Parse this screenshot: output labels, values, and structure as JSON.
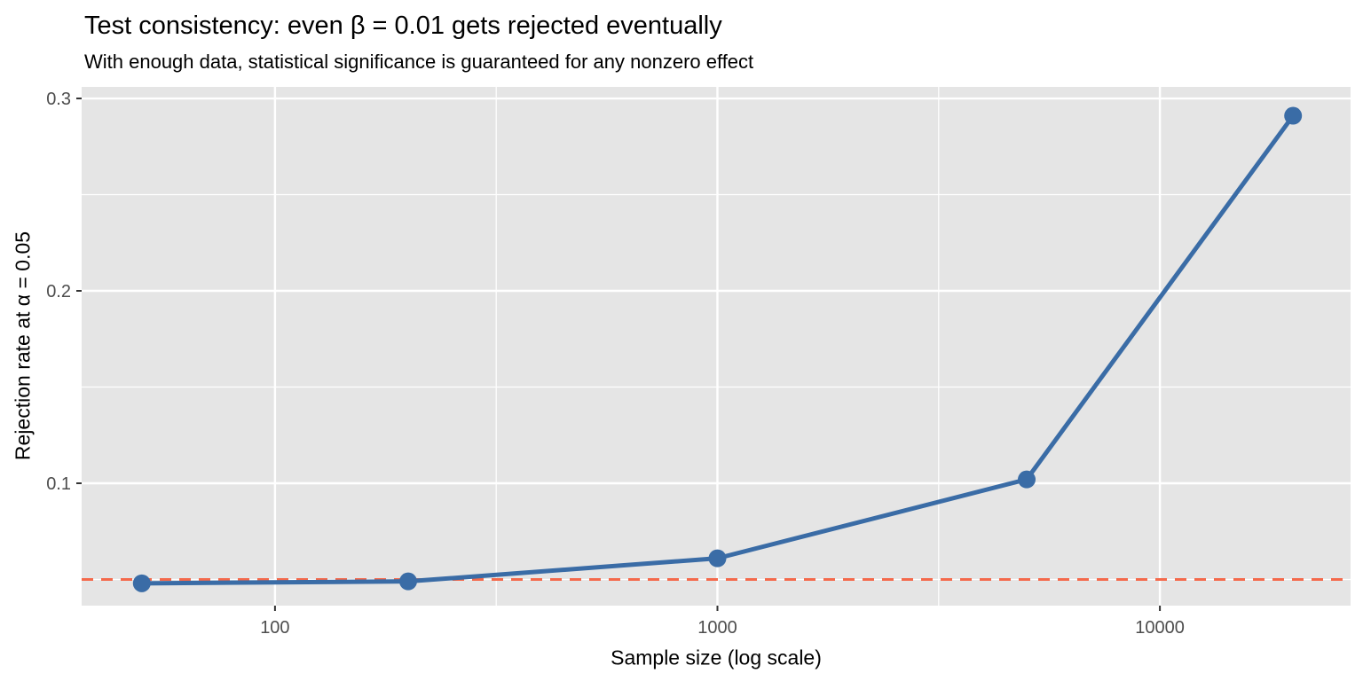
{
  "chart_data": {
    "type": "line",
    "title": "Test consistency: even β = 0.01 gets rejected eventually",
    "subtitle": "With enough data, statistical significance is guaranteed for any nonzero effect",
    "xlabel": "Sample size (log scale)",
    "ylabel": "Rejection rate at α = 0.05",
    "x": [
      50,
      200,
      1000,
      5000,
      20000
    ],
    "series": [
      {
        "name": "rejection-rate",
        "values": [
          0.048,
          0.049,
          0.061,
          0.102,
          0.291
        ]
      }
    ],
    "reference_line": {
      "y": 0.05,
      "style": "dashed"
    },
    "x_scale": "log10",
    "x_ticks": [
      100,
      1000,
      10000
    ],
    "x_tick_labels": [
      "100",
      "1000",
      "10000"
    ],
    "x_minor_ticks": [
      316.23,
      3162.3
    ],
    "y_ticks": [
      0.1,
      0.2,
      0.3
    ],
    "y_tick_labels": [
      "0.1",
      "0.2",
      "0.3"
    ],
    "y_minor_ticks": [
      0.05,
      0.15,
      0.25
    ],
    "xlim_log10": [
      1.563,
      4.431
    ],
    "ylim": [
      0.0364,
      0.306
    ],
    "grid": true,
    "legend": "none",
    "colors": {
      "line": "#3A6CA6",
      "point": "#3A6CA6",
      "reference": "#F4694B",
      "panel_bg": "#E5E5E5",
      "grid": "#FFFFFF",
      "tick_label": "#4D4D4D",
      "tick_mark": "#333333",
      "text": "#000000"
    }
  }
}
